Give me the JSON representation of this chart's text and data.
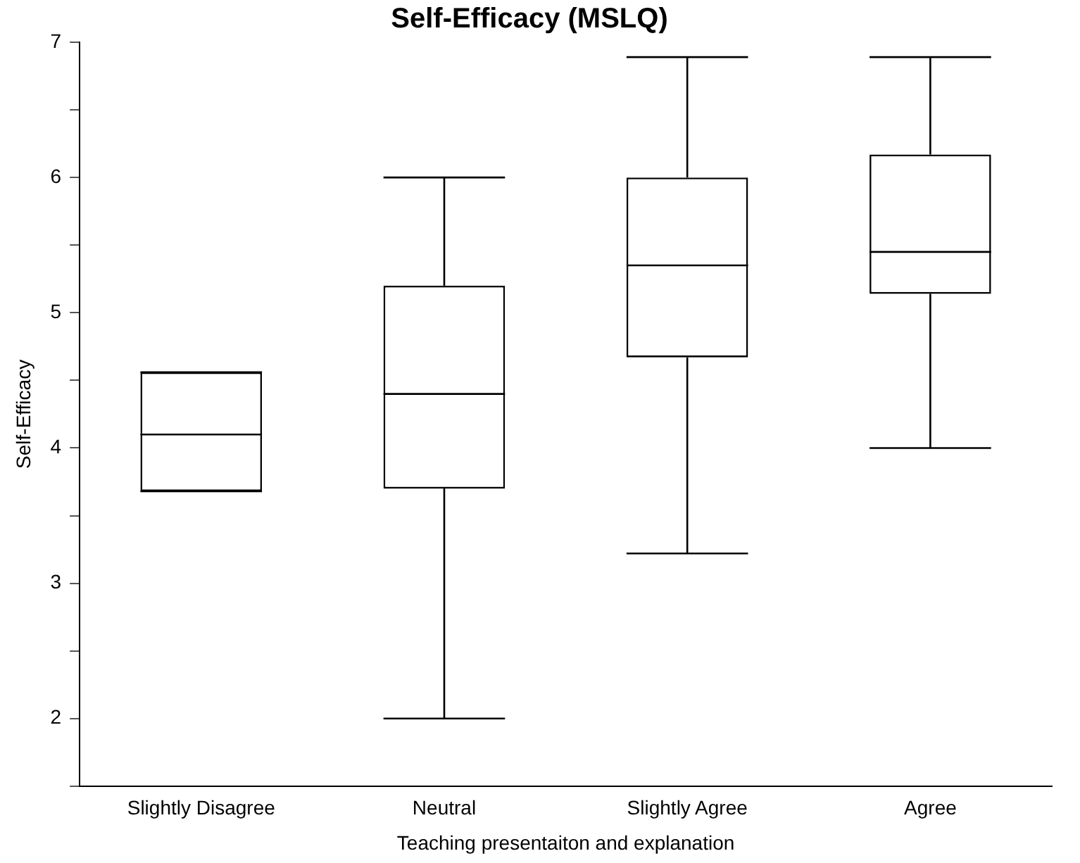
{
  "chart_data": {
    "type": "box",
    "title": "Self-Efficacy (MSLQ)",
    "xlabel": "Teaching presentaiton and explanation",
    "ylabel": "Self-Efficacy",
    "categories": [
      "Slightly Disagree",
      "Neutral",
      "Slightly Agree",
      "Agree"
    ],
    "boxes": [
      {
        "low": 3.68,
        "q1": 3.68,
        "median": 4.1,
        "q3": 4.56,
        "high": 4.56
      },
      {
        "low": 2.0,
        "q1": 3.7,
        "median": 4.4,
        "q3": 5.2,
        "high": 6.0
      },
      {
        "low": 3.22,
        "q1": 4.67,
        "median": 5.35,
        "q3": 6.0,
        "high": 6.89
      },
      {
        "low": 4.0,
        "q1": 5.14,
        "median": 5.45,
        "q3": 6.17,
        "high": 6.89
      }
    ],
    "color": "#000000",
    "ylim": [
      1.5,
      7
    ],
    "yticks": [
      {
        "value": 1.5,
        "label": null
      },
      2,
      {
        "value": 2.5,
        "label": null
      },
      3,
      {
        "value": 3.5,
        "label": null
      },
      4,
      {
        "value": 4.5,
        "label": null
      },
      5,
      {
        "value": 5.5,
        "label": null
      },
      6,
      {
        "value": 6.5,
        "label": null
      },
      7
    ],
    "grid": false
  }
}
